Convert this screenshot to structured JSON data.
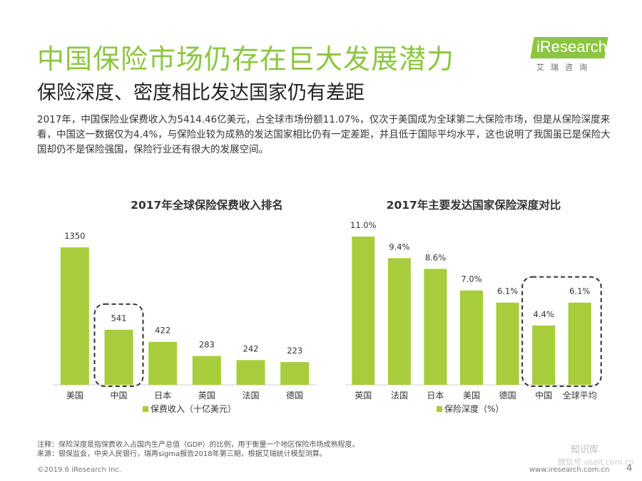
{
  "header": {
    "title": "中国保险市场仍存在巨大发展潜力",
    "subtitle": "保险深度、密度相比发达国家仍有差距",
    "logo_text": "iResearch",
    "logo_sub": "艾瑞咨询"
  },
  "intro": "2017年，中国保险业保费收入为5414.46亿美元，占全球市场份额11.07%，仅次于美国成为全球第二大保险市场，但是从保险深度来看，中国这一数据仅为4.4%，与保险业较为成熟的发达国家相比仍有一定差距，并且低于国际平均水平，这也说明了我国虽已是保险大国却仍不是保险强国，保险行业还有很大的发展空间。",
  "colors": {
    "accent": "#8cc63f",
    "bar": "#a8cd3c",
    "dash": "#333333"
  },
  "chart_data": [
    {
      "type": "bar",
      "title": "2017年全球保险保费收入排名",
      "categories": [
        "美国",
        "中国",
        "日本",
        "英国",
        "法国",
        "德国"
      ],
      "values": [
        1350,
        541,
        422,
        283,
        242,
        223
      ],
      "labels": [
        "1350",
        "541",
        "422",
        "283",
        "242",
        "223"
      ],
      "legend": "保费收入（十亿美元）",
      "ylim": [
        0,
        1400
      ],
      "highlight": "中国"
    },
    {
      "type": "bar",
      "title": "2017年主要发达国家保险深度对比",
      "categories": [
        "英国",
        "法国",
        "日本",
        "美国",
        "德国",
        "中国",
        "全球平均"
      ],
      "values": [
        11.0,
        9.4,
        8.6,
        7.0,
        6.1,
        4.4,
        6.1
      ],
      "labels": [
        "11.0%",
        "9.4%",
        "8.6%",
        "7.0%",
        "6.1%",
        "4.4%",
        "6.1%"
      ],
      "legend": "保险深度（%）",
      "ylim": [
        0,
        11.0
      ],
      "highlight_range": [
        "中国",
        "全球平均"
      ]
    }
  ],
  "notes": {
    "note1": "注释：保险深度是指保费收入占国内生产总值（GDP）的比例，用于衡量一个地区保险市场成熟程度。",
    "note2": "来源：银保监会，中央人民银行，瑞再sigma报告2018年第三期，根据艾瑞统计模型测算。"
  },
  "footer": {
    "copyright": "©2019.6 iResearch Inc.",
    "url": "www.iresearch.com.cn",
    "page": "4"
  },
  "watermark": {
    "name": "知识库",
    "sub": "微信号:useit.com.cn"
  }
}
